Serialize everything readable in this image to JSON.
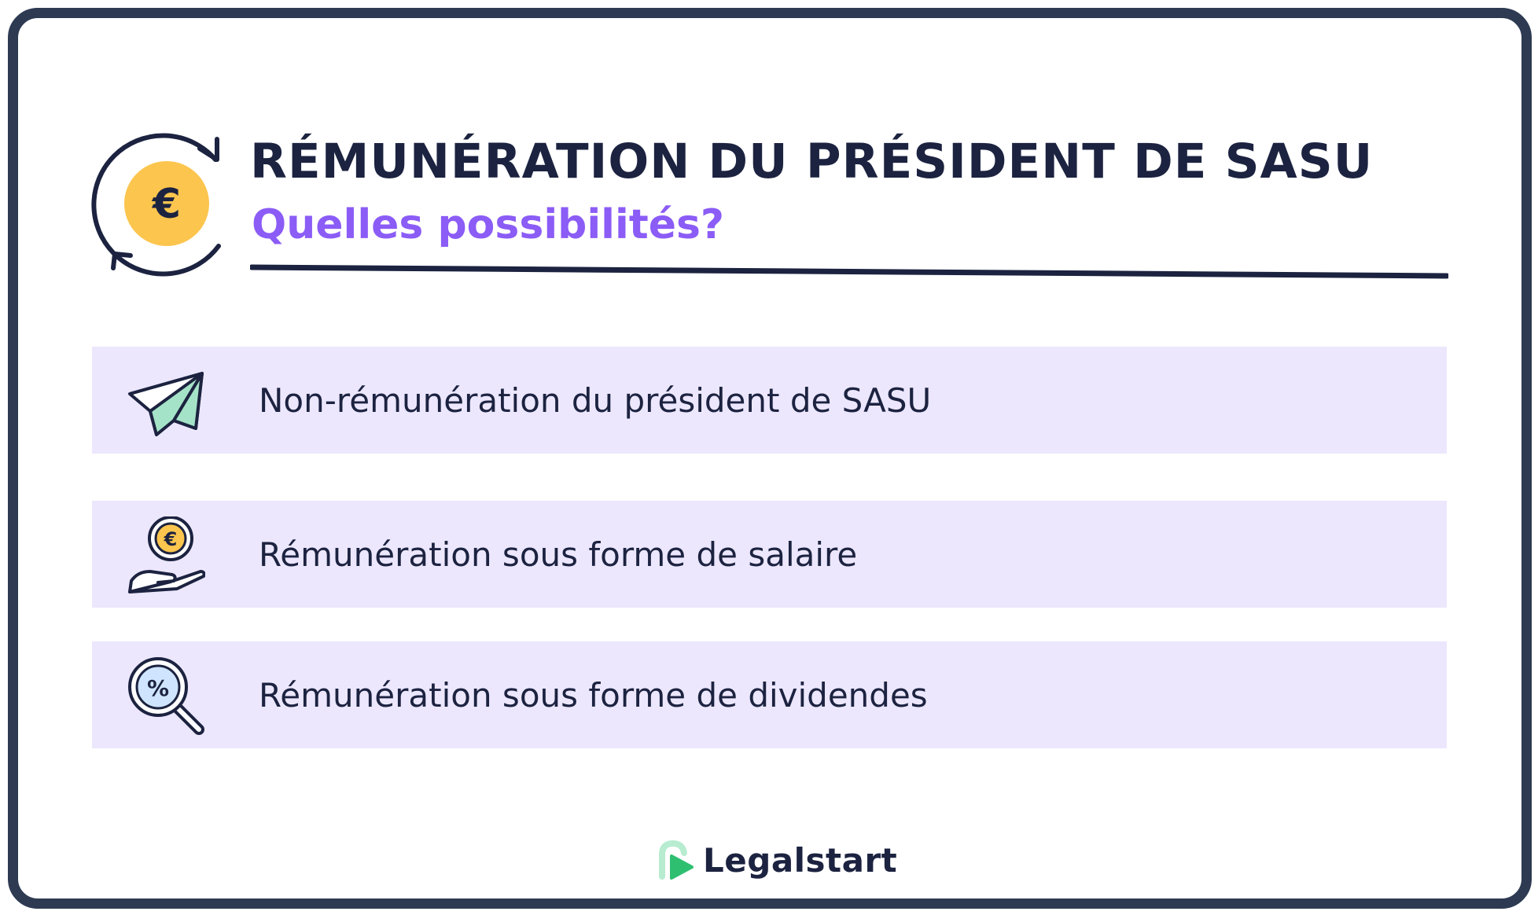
{
  "header": {
    "title": "RÉMUNÉRATION DU PRÉSIDENT DE SASU",
    "subtitle": "Quelles possibilités?",
    "icon": "euro-cycle-icon"
  },
  "options": [
    {
      "label": "Non-rémunération du président de SASU",
      "icon": "paper-plane-icon"
    },
    {
      "label": "Rémunération sous forme de salaire",
      "icon": "hand-euro-coin-icon"
    },
    {
      "label": "Rémunération sous forme de dividendes",
      "icon": "percent-magnifier-icon"
    }
  ],
  "brand": {
    "name": "Legalstart",
    "logo": "legalstart-logo"
  },
  "colors": {
    "frame": "#2d3a52",
    "title": "#1c2340",
    "subtitle": "#8b5cf6",
    "row_background": "#ece7fd",
    "coin": "#fcc54e",
    "plane_accent": "#a5e3c8",
    "magnifier_lens": "#cfe5ff",
    "logo_green": "#2fbf71",
    "logo_light": "#b7ecd0"
  }
}
